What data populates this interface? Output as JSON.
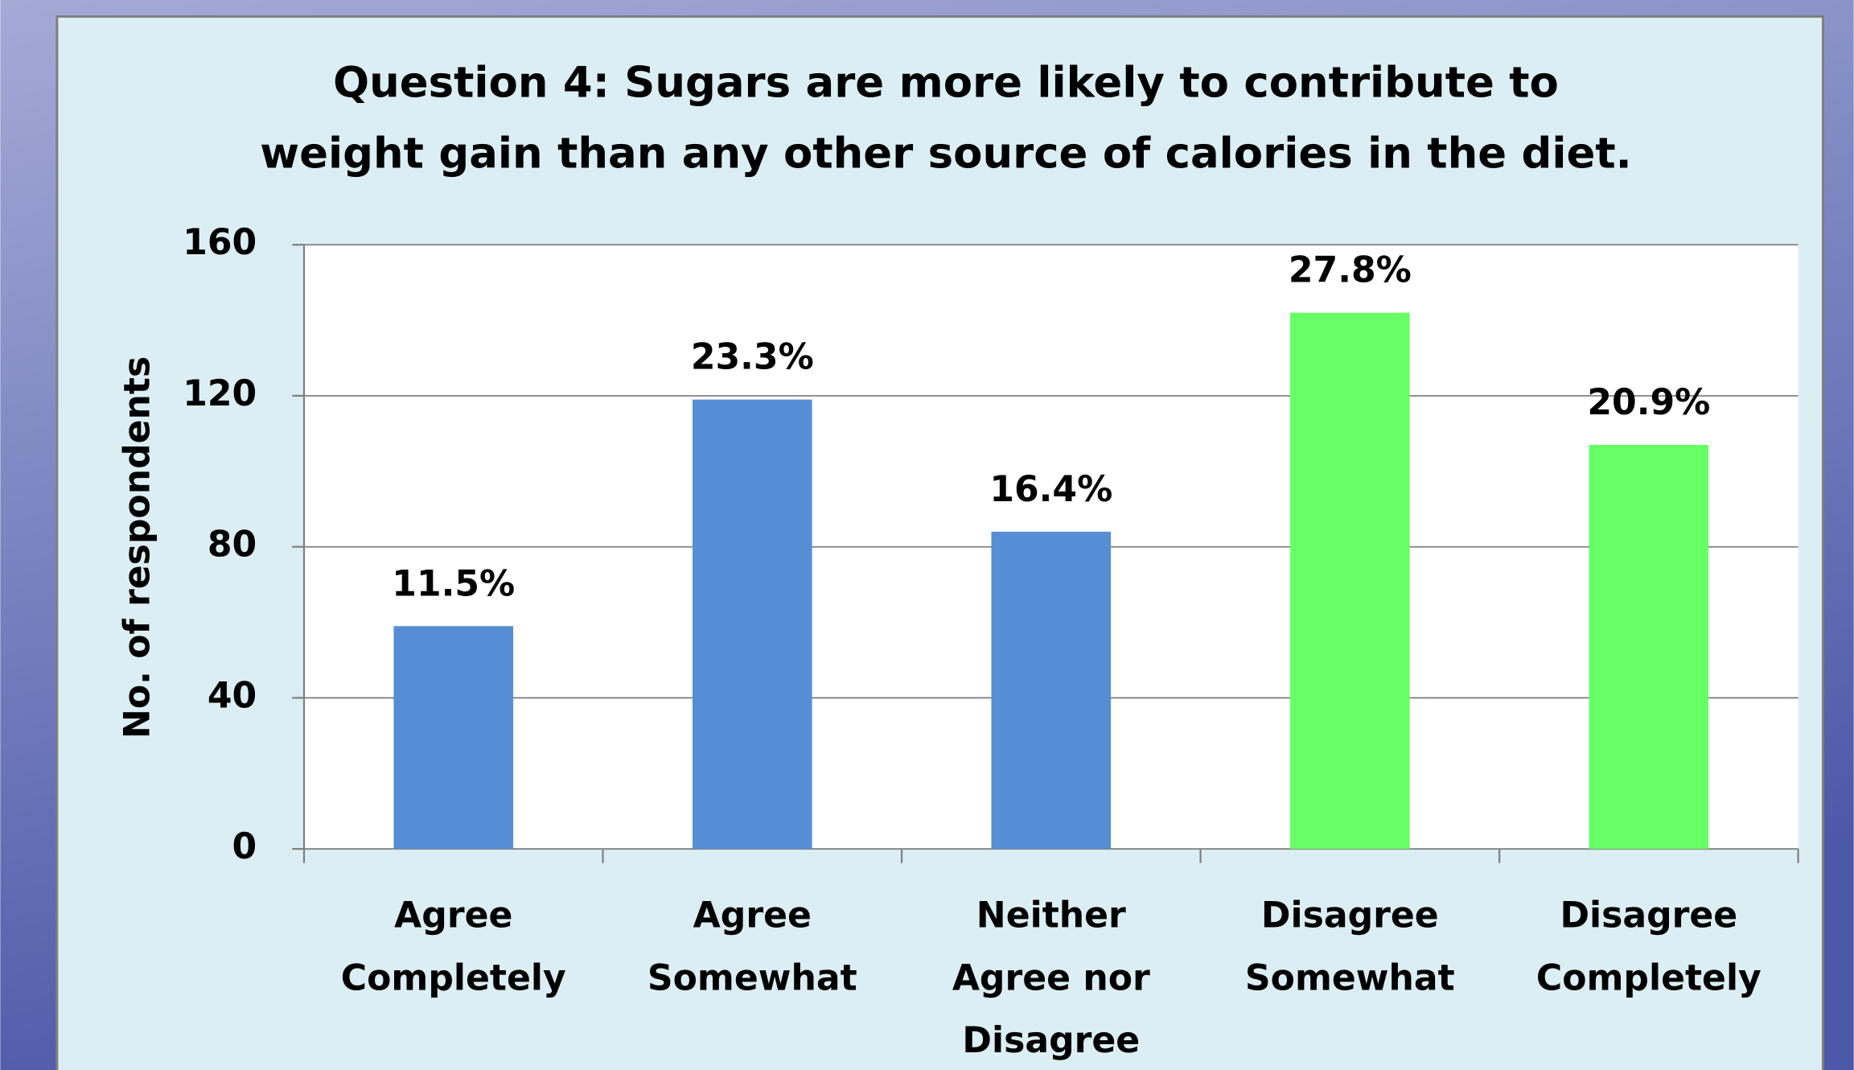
{
  "chart_data": {
    "type": "bar",
    "title": [
      "Question 4:  Sugars are more likely to contribute to",
      "weight gain than any other source of calories in the diet."
    ],
    "y_label": "No. of respondents",
    "categories": [
      [
        "Agree",
        "Completely"
      ],
      [
        "Agree",
        "Somewhat"
      ],
      [
        "Neither",
        "Agree nor",
        "Disagree"
      ],
      [
        "Disagree",
        "Somewhat"
      ],
      [
        "Disagree",
        "Completely"
      ]
    ],
    "values": [
      59,
      119,
      84,
      142,
      107
    ],
    "percentages": [
      "11.5%",
      "23.3%",
      "16.4%",
      "27.8%",
      "20.9%"
    ],
    "colors": [
      "#558ed5",
      "#558ed5",
      "#558ed5",
      "#66ff66",
      "#66ff66"
    ],
    "ylim": [
      0,
      160
    ],
    "yticks": [
      0,
      40,
      80,
      120,
      160
    ],
    "grid": true
  }
}
